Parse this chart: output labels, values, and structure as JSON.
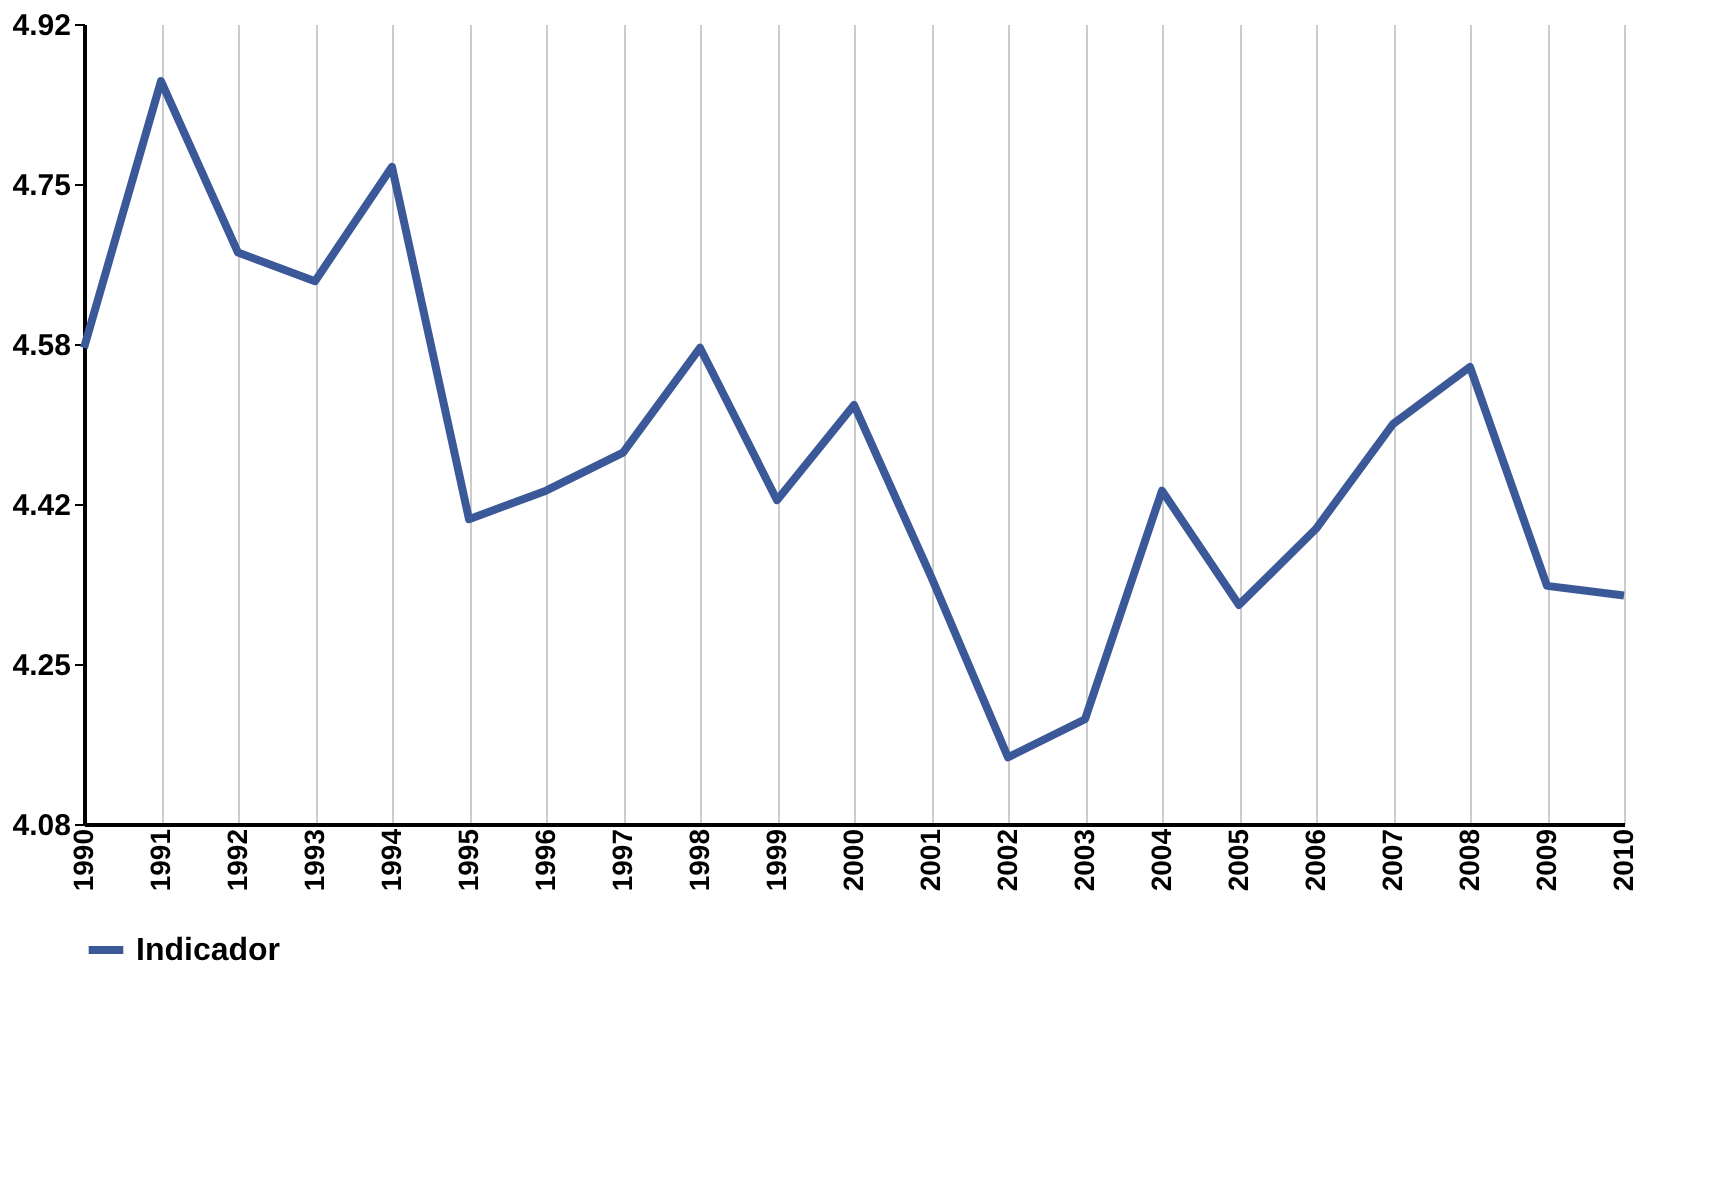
{
  "chart_data": {
    "type": "line",
    "categories": [
      "1990",
      "1991",
      "1992",
      "1993",
      "1994",
      "1995",
      "1996",
      "1997",
      "1998",
      "1999",
      "2000",
      "2001",
      "2002",
      "2003",
      "2004",
      "2005",
      "2006",
      "2007",
      "2008",
      "2009",
      "2010"
    ],
    "series": [
      {
        "name": "Indicador",
        "color": "#3b5998",
        "values": [
          4.58,
          4.86,
          4.68,
          4.65,
          4.77,
          4.4,
          4.43,
          4.47,
          4.58,
          4.42,
          4.52,
          4.34,
          4.15,
          4.19,
          4.43,
          4.31,
          4.39,
          4.5,
          4.56,
          4.33,
          4.32
        ]
      }
    ],
    "ylim": [
      4.08,
      4.92
    ],
    "yticks": [
      {
        "value": 4.08,
        "label": "4.08"
      },
      {
        "value": 4.248,
        "label": "4.25"
      },
      {
        "value": 4.416,
        "label": "4.42"
      },
      {
        "value": 4.584,
        "label": "4.58"
      },
      {
        "value": 4.752,
        "label": "4.75"
      },
      {
        "value": 4.92,
        "label": "4.92"
      }
    ],
    "grid": "x",
    "legend": "bottom",
    "marker": "none",
    "line_style": "solid"
  }
}
